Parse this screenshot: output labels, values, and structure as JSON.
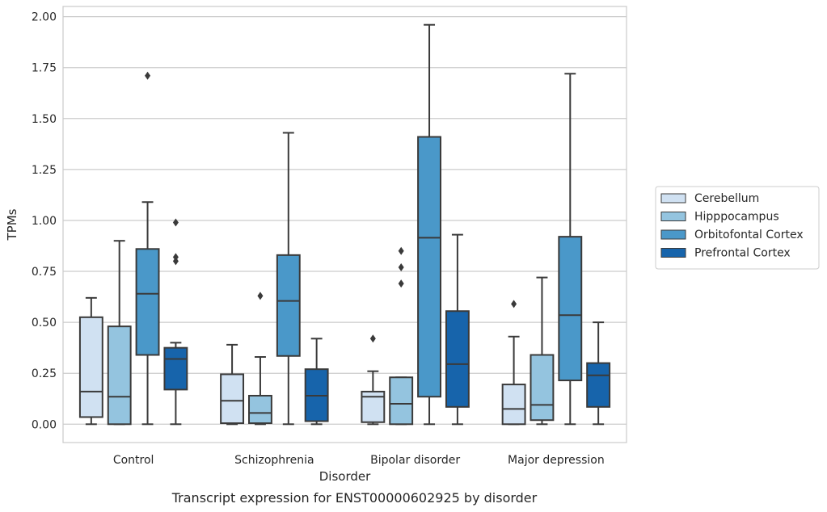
{
  "chart_data": {
    "type": "box",
    "caption": "Transcript expression for ENST00000602925 by disorder",
    "xlabel": "Disorder",
    "ylabel": "TPMs",
    "ylim": [
      -0.09,
      2.05
    ],
    "yticks": [
      0.0,
      0.25,
      0.5,
      0.75,
      1.0,
      1.25,
      1.5,
      1.75,
      2.0
    ],
    "ytick_labels": [
      "0.00",
      "0.25",
      "0.50",
      "0.75",
      "1.00",
      "1.25",
      "1.50",
      "1.75",
      "2.00"
    ],
    "grid": true,
    "legend_position": "right",
    "categories": [
      "Control",
      "Schizophrenia",
      "Bipolar disorder",
      "Major depression"
    ],
    "series": [
      {
        "name": "Cerebellum",
        "color": "#d0e1f2",
        "boxes": [
          {
            "whislo": 0.0,
            "q1": 0.035,
            "med": 0.16,
            "q3": 0.525,
            "whishi": 0.62,
            "fliers": []
          },
          {
            "whislo": 0.0,
            "q1": 0.005,
            "med": 0.115,
            "q3": 0.245,
            "whishi": 0.39,
            "fliers": []
          },
          {
            "whislo": 0.0,
            "q1": 0.01,
            "med": 0.135,
            "q3": 0.16,
            "whishi": 0.26,
            "fliers": [
              0.42
            ]
          },
          {
            "whislo": 0.0,
            "q1": 0.0,
            "med": 0.075,
            "q3": 0.195,
            "whishi": 0.43,
            "fliers": [
              0.59
            ]
          }
        ]
      },
      {
        "name": "Hipppocampus",
        "color": "#94c4df",
        "boxes": [
          {
            "whislo": 0.0,
            "q1": 0.0,
            "med": 0.135,
            "q3": 0.48,
            "whishi": 0.9,
            "fliers": []
          },
          {
            "whislo": 0.0,
            "q1": 0.005,
            "med": 0.055,
            "q3": 0.14,
            "whishi": 0.33,
            "fliers": [
              0.63
            ]
          },
          {
            "whislo": 0.0,
            "q1": 0.0,
            "med": 0.1,
            "q3": 0.23,
            "whishi": 0.23,
            "fliers": [
              0.69,
              0.77,
              0.85
            ]
          },
          {
            "whislo": 0.0,
            "q1": 0.02,
            "med": 0.095,
            "q3": 0.34,
            "whishi": 0.72,
            "fliers": []
          }
        ]
      },
      {
        "name": "Orbitofontal Cortex",
        "color": "#4a98c9",
        "boxes": [
          {
            "whislo": 0.0,
            "q1": 0.34,
            "med": 0.64,
            "q3": 0.86,
            "whishi": 1.09,
            "fliers": [
              1.71
            ]
          },
          {
            "whislo": 0.0,
            "q1": 0.335,
            "med": 0.605,
            "q3": 0.83,
            "whishi": 1.43,
            "fliers": []
          },
          {
            "whislo": 0.0,
            "q1": 0.135,
            "med": 0.915,
            "q3": 1.41,
            "whishi": 1.96,
            "fliers": []
          },
          {
            "whislo": 0.0,
            "q1": 0.215,
            "med": 0.535,
            "q3": 0.92,
            "whishi": 1.72,
            "fliers": []
          }
        ]
      },
      {
        "name": "Prefrontal Cortex",
        "color": "#1764ab",
        "boxes": [
          {
            "whislo": 0.0,
            "q1": 0.17,
            "med": 0.32,
            "q3": 0.375,
            "whishi": 0.4,
            "fliers": [
              0.8,
              0.82,
              0.99
            ]
          },
          {
            "whislo": 0.0,
            "q1": 0.015,
            "med": 0.14,
            "q3": 0.27,
            "whishi": 0.42,
            "fliers": []
          },
          {
            "whislo": 0.0,
            "q1": 0.085,
            "med": 0.295,
            "q3": 0.555,
            "whishi": 0.93,
            "fliers": []
          },
          {
            "whislo": 0.0,
            "q1": 0.085,
            "med": 0.24,
            "q3": 0.3,
            "whishi": 0.5,
            "fliers": []
          }
        ]
      }
    ]
  }
}
